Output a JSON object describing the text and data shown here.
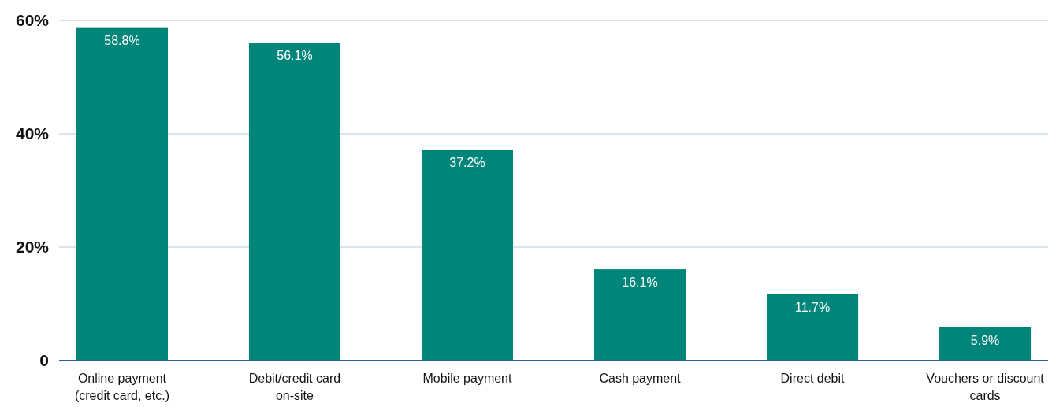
{
  "chart_data": {
    "type": "bar",
    "categories": [
      "Online payment (credit card, etc.)",
      "Debit/credit card on-site",
      "Mobile payment",
      "Cash payment",
      "Direct debit",
      "Vouchers or discount cards"
    ],
    "values": [
      58.8,
      56.1,
      37.2,
      16.1,
      11.7,
      5.9
    ],
    "value_labels": [
      "58.8%",
      "56.1%",
      "37.2%",
      "16.1%",
      "11.7%",
      "5.9%"
    ],
    "color": "#00857a",
    "ylim": [
      0,
      60
    ],
    "yticks": [
      {
        "value": 0,
        "label": "0"
      },
      {
        "value": 20,
        "label": "20%"
      },
      {
        "value": 40,
        "label": "40%"
      },
      {
        "value": 60,
        "label": "60%"
      }
    ],
    "grid": "y"
  }
}
